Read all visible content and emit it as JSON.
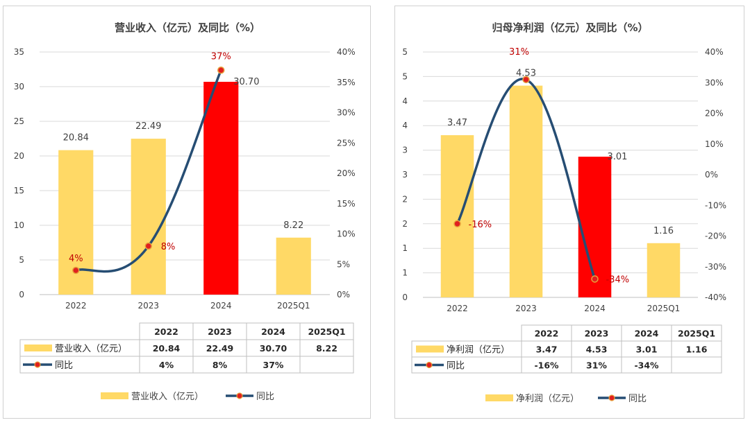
{
  "colors": {
    "bar": "#FFD966",
    "bar_highlight": "#FF0000",
    "line": "#264D73",
    "marker_fill": "#E02020",
    "marker_ring": "#E8A33C",
    "label_red": "#C00000",
    "grid": "#d9d9d9",
    "axis_text": "#404040"
  },
  "chart_data": [
    {
      "type": "bar",
      "title": "营业收入（亿元）及同比（%）",
      "categories": [
        "2022",
        "2023",
        "2024",
        "2025Q1"
      ],
      "highlight_index": 2,
      "ylim": [
        0,
        35
      ],
      "yticks": [
        0,
        5,
        10,
        15,
        20,
        25,
        30,
        35
      ],
      "y2lim": [
        0,
        40
      ],
      "y2ticks": [
        "0%",
        "5%",
        "10%",
        "15%",
        "20%",
        "25%",
        "30%",
        "35%",
        "40%"
      ],
      "series": [
        {
          "name": "营业收入（亿元）",
          "kind": "bar",
          "values": [
            20.84,
            22.49,
            30.7,
            8.22
          ],
          "labels": [
            "20.84",
            "22.49",
            "30.70",
            "8.22"
          ]
        },
        {
          "name": "同比",
          "kind": "line",
          "axis": "y2",
          "values": [
            4,
            8,
            37,
            null
          ],
          "labels": [
            "4%",
            "8%",
            "37%",
            ""
          ]
        }
      ],
      "table": {
        "header": [
          "2022",
          "2023",
          "2024",
          "2025Q1"
        ],
        "rows": [
          {
            "label": "营业收入（亿元）",
            "cells": [
              "20.84",
              "22.49",
              "30.70",
              "8.22"
            ]
          },
          {
            "label": "同比",
            "cells": [
              "4%",
              "8%",
              "37%",
              ""
            ]
          }
        ]
      },
      "legend": [
        "营业收入（亿元）",
        "同比"
      ],
      "legend_position": "bottom"
    },
    {
      "type": "bar",
      "title": "归母净利润（亿元）及同比（%）",
      "categories": [
        "2022",
        "2023",
        "2024",
        "2025Q1"
      ],
      "highlight_index": 2,
      "ylim": [
        0,
        5.25
      ],
      "yticks": [
        "0",
        "1",
        "1",
        "2",
        "2",
        "3",
        "3",
        "4",
        "4",
        "5",
        "5"
      ],
      "y2lim": [
        -40,
        40
      ],
      "y2ticks": [
        "-40%",
        "-30%",
        "-20%",
        "-10%",
        "0%",
        "10%",
        "20%",
        "30%",
        "40%"
      ],
      "series": [
        {
          "name": "净利润（亿元）",
          "kind": "bar",
          "values": [
            3.47,
            4.53,
            3.01,
            1.16
          ],
          "labels": [
            "3.47",
            "4.53",
            "3.01",
            "1.16"
          ]
        },
        {
          "name": "同比",
          "kind": "line",
          "axis": "y2",
          "values": [
            -16,
            31,
            -34,
            null
          ],
          "labels": [
            "-16%",
            "31%",
            "-34%",
            ""
          ]
        }
      ],
      "table": {
        "header": [
          "2022",
          "2023",
          "2024",
          "2025Q1"
        ],
        "rows": [
          {
            "label": "净利润（亿元）",
            "cells": [
              "3.47",
              "4.53",
              "3.01",
              "1.16"
            ]
          },
          {
            "label": "同比",
            "cells": [
              "-16%",
              "31%",
              "-34%",
              ""
            ]
          }
        ]
      },
      "legend": [
        "净利润（亿元）",
        "同比"
      ],
      "legend_position": "bottom"
    }
  ]
}
